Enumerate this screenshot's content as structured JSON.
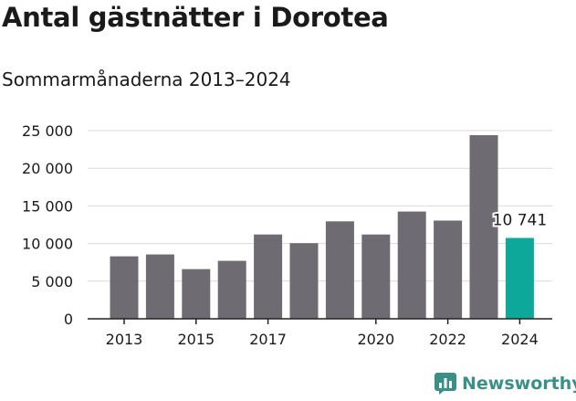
{
  "header": {
    "title": "Antal gästnätter i Dorotea",
    "subtitle": "Sommarmånaderna 2013–2024"
  },
  "brand": {
    "name": "Newsworthy",
    "icon": "newsworthy-logo-icon",
    "color": "#3a8f87"
  },
  "colors": {
    "bar": "#6e6c72",
    "highlight": "#0da89a",
    "grid": "#d9d9d9",
    "axis": "#222222"
  },
  "chart_data": {
    "type": "bar",
    "title": "Antal gästnätter i Dorotea",
    "subtitle": "Sommarmånaderna 2013–2024",
    "categories": [
      "2013",
      "2014",
      "2015",
      "2016",
      "2017",
      "2018",
      "2019",
      "2020",
      "2021",
      "2022",
      "2023",
      "2024"
    ],
    "values": [
      8300,
      8550,
      6600,
      7700,
      11200,
      10050,
      12950,
      11200,
      14250,
      13050,
      24400,
      10741
    ],
    "x_tick_labels": [
      "2013",
      "2015",
      "2017",
      "2020",
      "2022",
      "2024"
    ],
    "y_ticks": [
      0,
      5000,
      10000,
      15000,
      20000,
      25000
    ],
    "y_tick_labels": [
      "0",
      "5 000",
      "10 000",
      "15 000",
      "20 000",
      "25 000"
    ],
    "ylim": [
      0,
      25000
    ],
    "highlight_index": 11,
    "data_label": "10 741",
    "grid": true,
    "xlabel": "",
    "ylabel": ""
  }
}
